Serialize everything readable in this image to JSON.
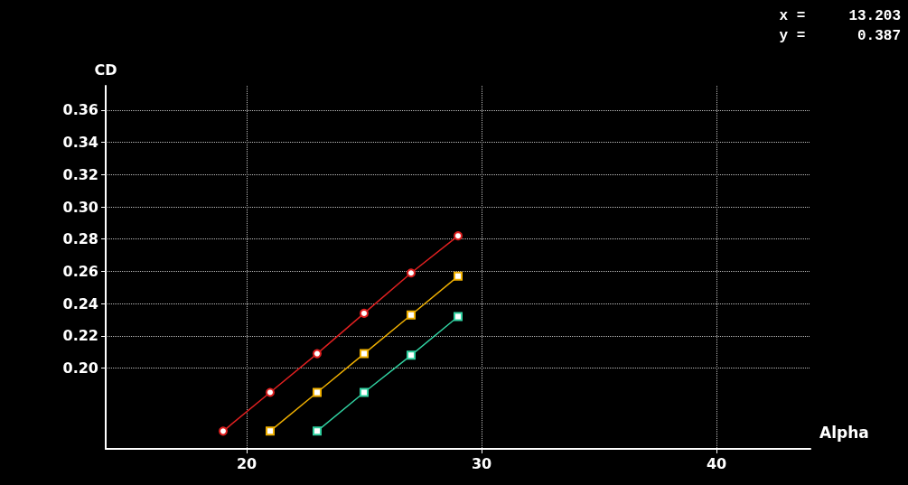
{
  "chart_data": {
    "type": "line",
    "xlabel": "Alpha",
    "ylabel": "CD",
    "annotations": [
      "x =     13.203",
      "y =      0.387"
    ],
    "xlim": [
      14,
      44
    ],
    "xticks": [
      20,
      30,
      40
    ],
    "ylim": [
      0.15,
      0.375
    ],
    "yticks": [
      {
        "value": 0.2,
        "label": "0.20"
      },
      {
        "value": 0.22,
        "label": "0.22"
      },
      {
        "value": 0.24,
        "label": "0.24"
      },
      {
        "value": 0.26,
        "label": "0.26"
      },
      {
        "value": 0.28,
        "label": "0.28"
      },
      {
        "value": 0.3,
        "label": "0.30"
      },
      {
        "value": 0.32,
        "label": "0.32"
      },
      {
        "value": 0.34,
        "label": "0.34"
      },
      {
        "value": 0.36,
        "label": "0.36"
      }
    ],
    "grid": true,
    "series": [
      {
        "color": "#e02020",
        "marker": "circle",
        "x": [
          19,
          21,
          23,
          25,
          27,
          29
        ],
        "values": [
          0.161,
          0.185,
          0.209,
          0.234,
          0.259,
          0.282
        ]
      },
      {
        "color": "#f0b000",
        "marker": "square",
        "x": [
          21,
          23,
          25,
          27,
          29
        ],
        "values": [
          0.161,
          0.185,
          0.209,
          0.233,
          0.257
        ]
      },
      {
        "color": "#30d0a0",
        "marker": "square",
        "x": [
          23,
          25,
          27,
          29
        ],
        "values": [
          0.161,
          0.185,
          0.208,
          0.232
        ]
      }
    ]
  }
}
